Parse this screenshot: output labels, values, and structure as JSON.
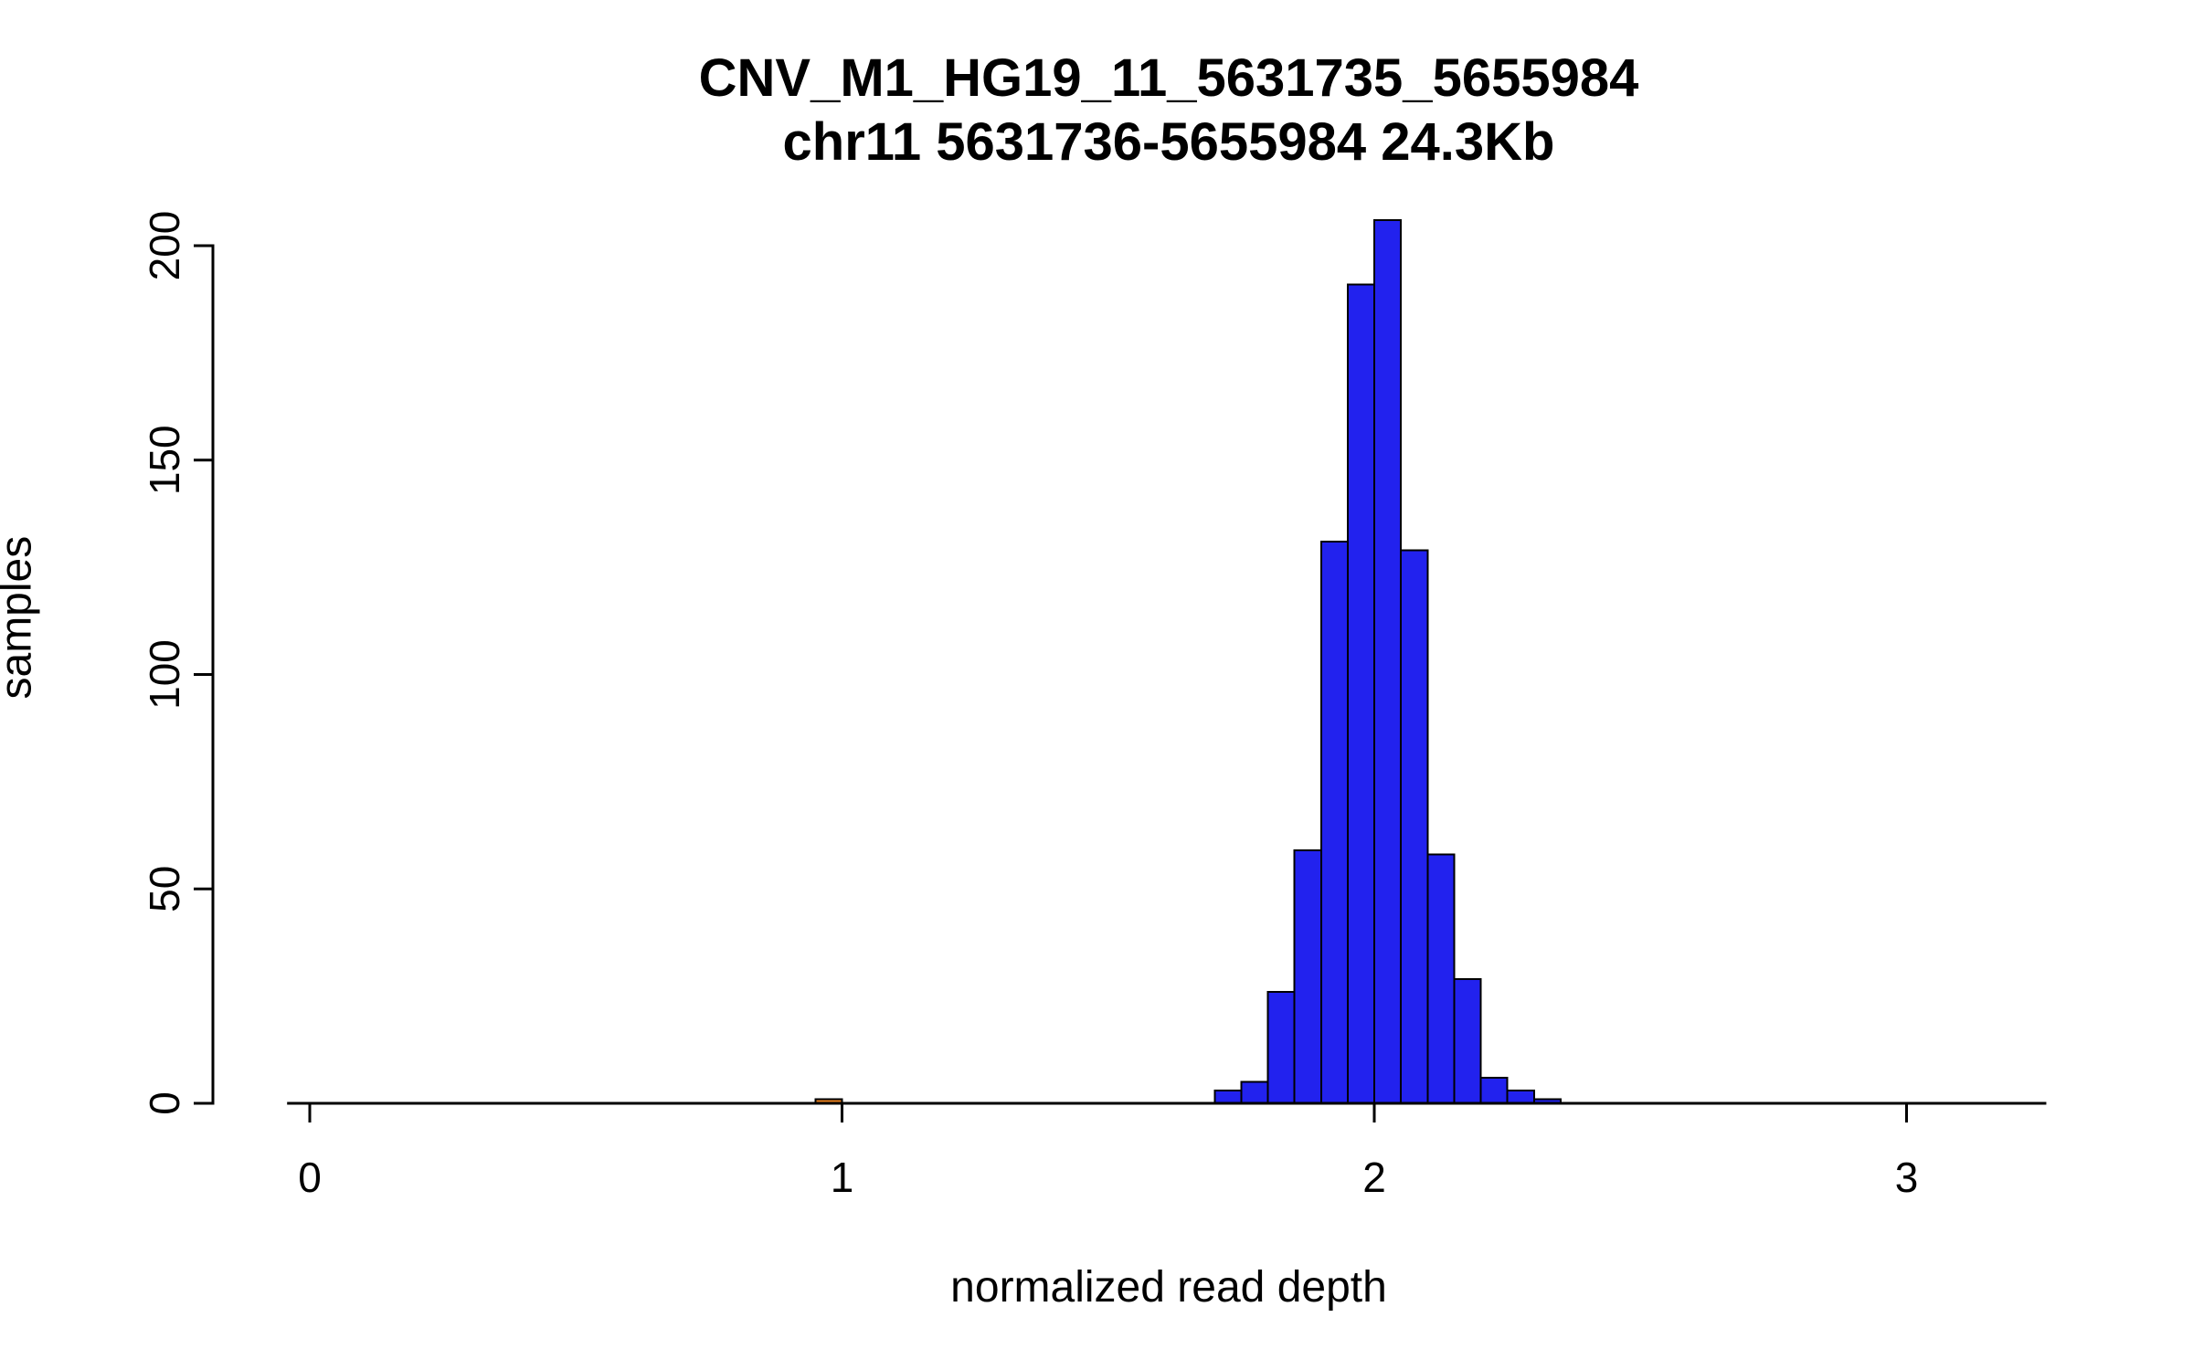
{
  "page": {
    "background": "#ffffff"
  },
  "chart_data": {
    "type": "bar",
    "chart_kind": "histogram",
    "title": "CNV_M1_HG19_11_5631735_5655984",
    "subtitle": "chr11 5631736-5655984 24.3Kb",
    "xlabel": "normalized read depth",
    "ylabel": "samples",
    "xlim": [
      -0.04,
      3.26
    ],
    "ylim": [
      0,
      206
    ],
    "x_ticks": [
      0,
      1,
      2,
      3
    ],
    "y_ticks": [
      0,
      50,
      100,
      150,
      200
    ],
    "grid": false,
    "legend": "none",
    "bin_width": 0.05,
    "bar_fill": "#2222EE",
    "bar_stroke": "#000000",
    "bars": [
      {
        "name": "outlier-bar",
        "x0": 0.95,
        "x1": 1.0,
        "count": 1,
        "fill": "#E8801E"
      },
      {
        "name": "histogram-bar",
        "x0": 1.7,
        "x1": 1.75,
        "count": 3
      },
      {
        "name": "histogram-bar",
        "x0": 1.75,
        "x1": 1.8,
        "count": 5
      },
      {
        "name": "histogram-bar",
        "x0": 1.8,
        "x1": 1.85,
        "count": 26
      },
      {
        "name": "histogram-bar",
        "x0": 1.85,
        "x1": 1.9,
        "count": 59
      },
      {
        "name": "histogram-bar",
        "x0": 1.9,
        "x1": 1.95,
        "count": 131
      },
      {
        "name": "histogram-bar",
        "x0": 1.95,
        "x1": 2.0,
        "count": 191
      },
      {
        "name": "histogram-bar",
        "x0": 2.0,
        "x1": 2.05,
        "count": 206
      },
      {
        "name": "histogram-bar",
        "x0": 2.05,
        "x1": 2.1,
        "count": 129
      },
      {
        "name": "histogram-bar",
        "x0": 2.1,
        "x1": 2.15,
        "count": 58
      },
      {
        "name": "histogram-bar",
        "x0": 2.15,
        "x1": 2.2,
        "count": 29
      },
      {
        "name": "histogram-bar",
        "x0": 2.2,
        "x1": 2.25,
        "count": 6
      },
      {
        "name": "histogram-bar",
        "x0": 2.25,
        "x1": 2.3,
        "count": 3
      },
      {
        "name": "histogram-bar",
        "x0": 2.3,
        "x1": 2.35,
        "count": 1
      }
    ]
  }
}
